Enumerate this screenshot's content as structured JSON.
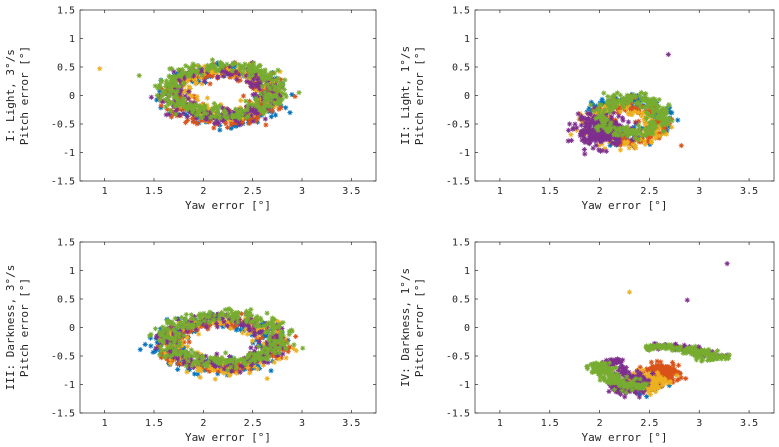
{
  "colors": {
    "blue": "#0072BD",
    "orange": "#D95319",
    "yellow": "#EDB120",
    "purple": "#7E2F8E",
    "green": "#77AC30",
    "axis": "#262626"
  },
  "chart_data": [
    {
      "type": "scatter",
      "panel": "I",
      "ylabel": "I: Light, 3°/s",
      "ylabel2": "Pitch error [°]",
      "xlabel": "Yaw error [°]",
      "xlim": [
        0.75,
        3.75
      ],
      "ylim": [
        -1.5,
        1.5
      ],
      "xticks": [
        "1",
        "1.5",
        "2",
        "2.5",
        "3",
        "3.5"
      ],
      "yticks": [
        "-1.5",
        "-1",
        "-0.5",
        "0",
        "0.5",
        "1",
        "1.5"
      ],
      "marker": "*",
      "clusters": [
        {
          "series": "blue",
          "shape": "ring",
          "cx": 2.2,
          "cy": 0.0,
          "rx": 0.52,
          "ry": 0.45,
          "w": 0.14,
          "n": 220
        },
        {
          "series": "orange",
          "shape": "ring",
          "cx": 2.2,
          "cy": -0.02,
          "rx": 0.5,
          "ry": 0.42,
          "w": 0.14,
          "n": 200
        },
        {
          "series": "yellow",
          "shape": "ring",
          "cx": 2.22,
          "cy": 0.05,
          "rx": 0.45,
          "ry": 0.38,
          "w": 0.14,
          "n": 180
        },
        {
          "series": "purple",
          "shape": "ring",
          "cx": 2.18,
          "cy": 0.02,
          "rx": 0.5,
          "ry": 0.4,
          "w": 0.14,
          "n": 220
        },
        {
          "series": "green",
          "shape": "ring",
          "cx": 2.2,
          "cy": 0.1,
          "rx": 0.55,
          "ry": 0.42,
          "w": 0.13,
          "n": 330
        }
      ],
      "outliers": [
        {
          "series": "yellow",
          "x": 0.95,
          "y": 0.47
        },
        {
          "series": "green",
          "x": 1.35,
          "y": 0.35
        },
        {
          "series": "green",
          "x": 2.97,
          "y": 0.05
        }
      ]
    },
    {
      "type": "scatter",
      "panel": "II",
      "ylabel": "II: Light, 1°/s",
      "ylabel2": "Pitch error [°]",
      "xlabel": "Yaw error [°]",
      "xlim": [
        0.75,
        3.75
      ],
      "ylim": [
        -1.5,
        1.5
      ],
      "xticks": [
        "1",
        "1.5",
        "2",
        "2.5",
        "3",
        "3.5"
      ],
      "yticks": [
        "-1.5",
        "-1",
        "-0.5",
        "0",
        "0.5",
        "1",
        "1.5"
      ],
      "marker": "*",
      "clusters": [
        {
          "series": "blue",
          "shape": "ring",
          "cx": 2.3,
          "cy": -0.42,
          "rx": 0.33,
          "ry": 0.33,
          "w": 0.12,
          "n": 170
        },
        {
          "series": "orange",
          "shape": "ring",
          "cx": 2.3,
          "cy": -0.48,
          "rx": 0.3,
          "ry": 0.32,
          "w": 0.12,
          "n": 160
        },
        {
          "series": "yellow",
          "shape": "ring",
          "cx": 2.2,
          "cy": -0.55,
          "rx": 0.38,
          "ry": 0.3,
          "w": 0.12,
          "n": 130
        },
        {
          "series": "purple",
          "shape": "blob",
          "cx": 2.0,
          "cy": -0.62,
          "rx": 0.28,
          "ry": 0.3,
          "w": 0.0,
          "n": 260
        },
        {
          "series": "green",
          "shape": "ring",
          "cx": 2.3,
          "cy": -0.35,
          "rx": 0.32,
          "ry": 0.3,
          "w": 0.1,
          "n": 240
        }
      ],
      "outliers": [
        {
          "series": "purple",
          "x": 2.69,
          "y": 0.72
        },
        {
          "series": "orange",
          "x": 2.82,
          "y": -0.88
        }
      ]
    },
    {
      "type": "scatter",
      "panel": "III",
      "ylabel": "III: Darkness, 3°/s",
      "ylabel2": "Pitch error [°]",
      "xlabel": "Yaw error [°]",
      "xlim": [
        0.75,
        3.75
      ],
      "ylim": [
        -1.5,
        1.5
      ],
      "xticks": [
        "1",
        "1.5",
        "2",
        "2.5",
        "3",
        "3.5"
      ],
      "yticks": [
        "-1.5",
        "-1",
        "-0.5",
        "0",
        "0.5",
        "1",
        "1.5"
      ],
      "marker": "*",
      "clusters": [
        {
          "series": "blue",
          "shape": "ring",
          "cx": 2.15,
          "cy": -0.3,
          "rx": 0.55,
          "ry": 0.42,
          "w": 0.15,
          "n": 230
        },
        {
          "series": "orange",
          "shape": "ring",
          "cx": 2.2,
          "cy": -0.3,
          "rx": 0.55,
          "ry": 0.4,
          "w": 0.14,
          "n": 200
        },
        {
          "series": "yellow",
          "shape": "ring",
          "cx": 2.2,
          "cy": -0.32,
          "rx": 0.52,
          "ry": 0.42,
          "w": 0.14,
          "n": 200
        },
        {
          "series": "purple",
          "shape": "ring",
          "cx": 2.18,
          "cy": -0.25,
          "rx": 0.55,
          "ry": 0.4,
          "w": 0.14,
          "n": 230
        },
        {
          "series": "green",
          "shape": "ring",
          "cx": 2.2,
          "cy": -0.2,
          "rx": 0.58,
          "ry": 0.42,
          "w": 0.13,
          "n": 320
        }
      ],
      "outliers": [
        {
          "series": "green",
          "x": 1.47,
          "y": -0.12
        }
      ]
    },
    {
      "type": "scatter",
      "panel": "IV",
      "ylabel": "IV: Darkness, 1°/s",
      "ylabel2": "Pitch error [°]",
      "xlabel": "Yaw error [°]",
      "xlim": [
        0.75,
        3.75
      ],
      "ylim": [
        -1.5,
        1.5
      ],
      "xticks": [
        "1",
        "1.5",
        "2",
        "2.5",
        "3",
        "3.5"
      ],
      "yticks": [
        "-1.5",
        "-1",
        "-0.5",
        "0",
        "0.5",
        "1",
        "1.5"
      ],
      "marker": "*",
      "clusters": [
        {
          "series": "blue",
          "shape": "blob",
          "cx": 2.5,
          "cy": -1.0,
          "rx": 0.18,
          "ry": 0.16,
          "w": 0.0,
          "n": 90
        },
        {
          "series": "orange",
          "shape": "blob",
          "cx": 2.62,
          "cy": -0.8,
          "rx": 0.2,
          "ry": 0.18,
          "w": 0.0,
          "n": 180
        },
        {
          "series": "yellow",
          "shape": "blob",
          "cx": 2.45,
          "cy": -0.95,
          "rx": 0.22,
          "ry": 0.2,
          "w": 0.0,
          "n": 180
        },
        {
          "series": "purple",
          "shape": "blob",
          "cx": 2.28,
          "cy": -1.02,
          "rx": 0.18,
          "ry": 0.16,
          "w": 0.0,
          "n": 150
        },
        {
          "series": "purple",
          "shape": "arc",
          "cx": 2.6,
          "cy": -0.55,
          "rx": 0.45,
          "ry": 0.42,
          "w": 0.08,
          "n": 120
        },
        {
          "series": "green",
          "shape": "arc",
          "cx": 2.55,
          "cy": -0.62,
          "rx": 0.55,
          "ry": 0.48,
          "w": 0.1,
          "n": 330
        }
      ],
      "outliers": [
        {
          "series": "purple",
          "x": 3.28,
          "y": 1.12
        },
        {
          "series": "yellow",
          "x": 2.3,
          "y": 0.62
        },
        {
          "series": "purple",
          "x": 2.88,
          "y": 0.48
        },
        {
          "series": "green",
          "x": 3.3,
          "y": -0.48
        }
      ]
    }
  ]
}
